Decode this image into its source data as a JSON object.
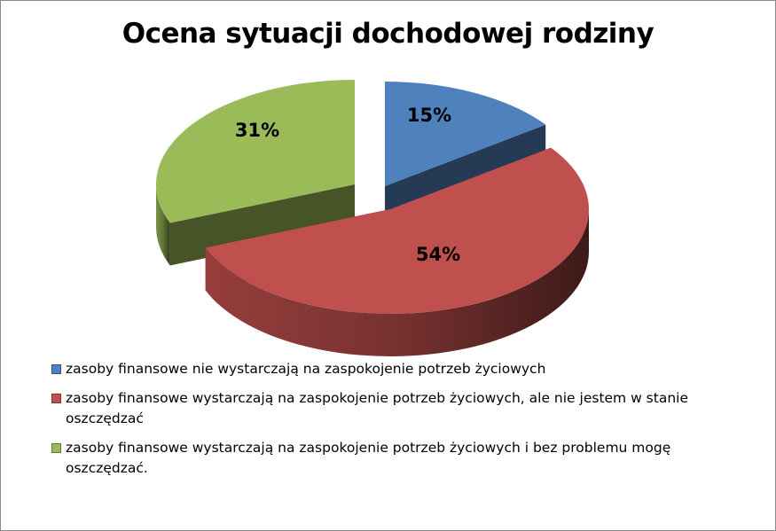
{
  "chart_data": {
    "type": "pie",
    "title": "Ocena sytuacji dochodowej rodziny",
    "categories": [
      "zasoby finansowe nie wystarczają na zaspokojenie potrzeb życiowych",
      "zasoby finansowe wystarczają na zaspokojenie potrzeb życiowych, ale nie jestem w stanie oszczędzać",
      "zasoby finansowe wystarczają na zaspokojenie potrzeb życiowych i bez problemu mogę oszczędzać."
    ],
    "values": [
      15,
      54,
      31
    ],
    "labels": [
      "15%",
      "54%",
      "31%"
    ],
    "colors": [
      "#4F81BD",
      "#C0504D",
      "#9BBB59"
    ],
    "legend_position": "bottom",
    "style": "3d-exploded"
  }
}
